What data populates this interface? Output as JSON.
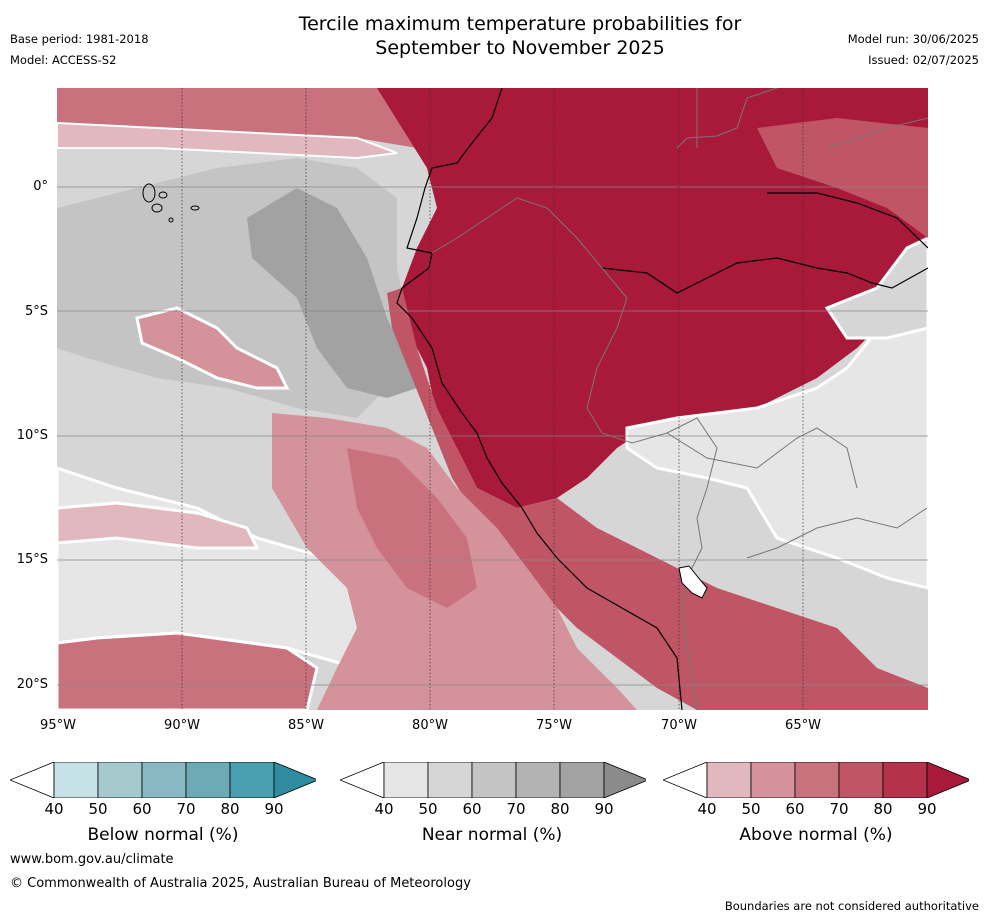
{
  "title": {
    "line1": "Tercile maximum temperature probabilities for",
    "line2": "September to November 2025"
  },
  "meta": {
    "base_period": "Base period: 1981-2018",
    "model": "Model: ACCESS-S2",
    "model_run": "Model run: 30/06/2025",
    "issued": "Issued: 02/07/2025"
  },
  "map": {
    "lat_labels": [
      "0°",
      "5°S",
      "10°S",
      "15°S",
      "20°S"
    ],
    "lon_labels": [
      "95°W",
      "90°W",
      "85°W",
      "80°W",
      "75°W",
      "70°W",
      "65°W"
    ]
  },
  "colorbars": [
    {
      "label": "Below normal (%)",
      "ticks": [
        "40",
        "50",
        "60",
        "70",
        "80",
        "90"
      ],
      "colors": [
        "#ffffff",
        "#c6e2e6",
        "#a6c9cd",
        "#8ab8c2",
        "#6cabb5",
        "#4a9fae",
        "#2f8ba0"
      ]
    },
    {
      "label": "Near normal (%)",
      "ticks": [
        "40",
        "50",
        "60",
        "70",
        "80",
        "90"
      ],
      "colors": [
        "#ffffff",
        "#e6e6e6",
        "#d6d6d6",
        "#c4c4c4",
        "#b3b3b3",
        "#a2a2a2",
        "#8a8a8a"
      ]
    },
    {
      "label": "Above normal (%)",
      "ticks": [
        "40",
        "50",
        "60",
        "70",
        "80",
        "90"
      ],
      "colors": [
        "#ffffff",
        "#e0b8bd",
        "#d4939b",
        "#c9727e",
        "#c05566",
        "#b4334a",
        "#a8193a"
      ]
    }
  ],
  "footer": {
    "url": "www.bom.gov.au/climate",
    "copyright": "© Commonwealth of Australia 2025, Australian Bureau of Meteorology",
    "disclaimer": "Boundaries are not considered authoritative"
  }
}
